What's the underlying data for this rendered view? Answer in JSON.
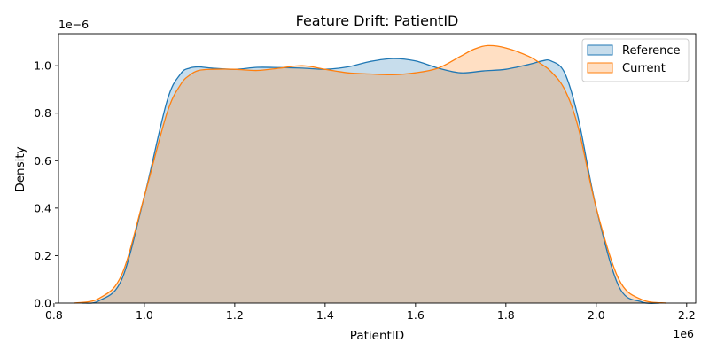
{
  "chart_data": {
    "type": "area",
    "title": "Feature Drift: PatientID",
    "xlabel": "PatientID",
    "ylabel": "Density",
    "x_offset_label": "1e6",
    "y_offset_label": "1e−6",
    "xlim": [
      0.81,
      2.22
    ],
    "ylim": [
      0,
      1.135
    ],
    "x_ticks": [
      0.8,
      1.0,
      1.2,
      1.4,
      1.6,
      1.8,
      2.0,
      2.2
    ],
    "x_tick_labels": [
      "0.8",
      "1.0",
      "1.2",
      "1.4",
      "1.6",
      "1.8",
      "2.0",
      "2.2"
    ],
    "y_ticks": [
      0.0,
      0.2,
      0.4,
      0.6,
      0.8,
      1.0
    ],
    "y_tick_labels": [
      "0.0",
      "0.2",
      "0.4",
      "0.6",
      "0.8",
      "1.0"
    ],
    "legend_position": "top-right",
    "grid": false,
    "series": [
      {
        "name": "Reference",
        "color": "#1f77b4",
        "fill": "#1f77b4",
        "fill_opacity": 0.25,
        "x": [
          0.863,
          0.9,
          0.95,
          1.0,
          1.05,
          1.08,
          1.1,
          1.12,
          1.15,
          1.2,
          1.25,
          1.3,
          1.35,
          1.4,
          1.45,
          1.5,
          1.55,
          1.6,
          1.65,
          1.7,
          1.75,
          1.8,
          1.85,
          1.88,
          1.9,
          1.93,
          1.96,
          2.0,
          2.05,
          2.1,
          2.14
        ],
        "y": [
          0.0,
          0.01,
          0.1,
          0.45,
          0.85,
          0.965,
          0.99,
          0.995,
          0.99,
          0.985,
          0.993,
          0.992,
          0.99,
          0.985,
          0.995,
          1.018,
          1.03,
          1.02,
          0.99,
          0.97,
          0.978,
          0.985,
          1.005,
          1.02,
          1.02,
          0.97,
          0.78,
          0.4,
          0.07,
          0.005,
          0.0
        ]
      },
      {
        "name": "Current",
        "color": "#ff7f0e",
        "fill": "#ff7f0e",
        "fill_opacity": 0.25,
        "x": [
          0.845,
          0.9,
          0.95,
          1.0,
          1.05,
          1.08,
          1.1,
          1.12,
          1.15,
          1.2,
          1.25,
          1.3,
          1.35,
          1.4,
          1.45,
          1.5,
          1.55,
          1.6,
          1.65,
          1.7,
          1.73,
          1.76,
          1.8,
          1.85,
          1.88,
          1.9,
          1.93,
          1.96,
          2.0,
          2.05,
          2.1,
          2.155
        ],
        "y": [
          0.0,
          0.02,
          0.12,
          0.45,
          0.8,
          0.92,
          0.96,
          0.98,
          0.985,
          0.985,
          0.98,
          0.99,
          1.0,
          0.985,
          0.97,
          0.965,
          0.962,
          0.97,
          0.99,
          1.04,
          1.07,
          1.085,
          1.075,
          1.04,
          1.005,
          0.975,
          0.9,
          0.74,
          0.4,
          0.1,
          0.015,
          0.0
        ]
      }
    ]
  }
}
